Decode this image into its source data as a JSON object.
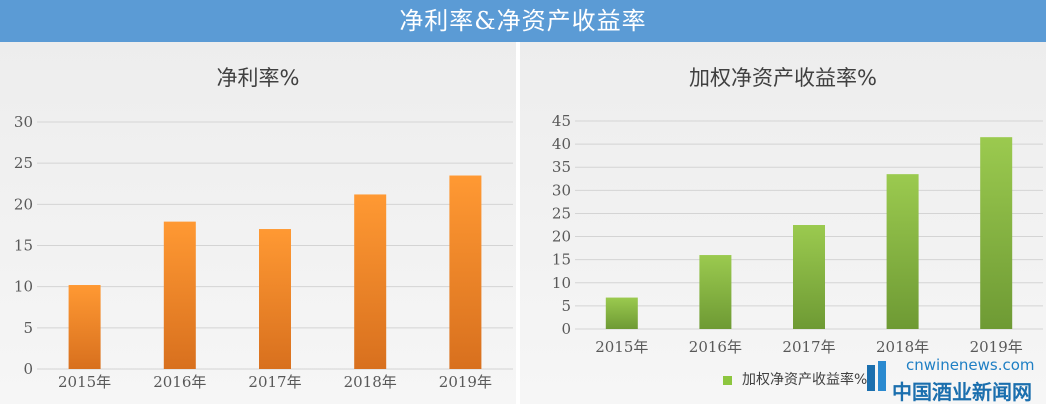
{
  "banner": {
    "title": "净利率&净资产收益率"
  },
  "chart_data": [
    {
      "type": "bar",
      "title": "净利率%",
      "categories": [
        "2015年",
        "2016年",
        "2017年",
        "2018年",
        "2019年"
      ],
      "values": [
        10.2,
        17.9,
        17.0,
        21.2,
        23.5
      ],
      "ylim": [
        0,
        30
      ],
      "yticks": [
        0,
        5,
        10,
        15,
        20,
        25,
        30
      ],
      "grid": true,
      "colors": {
        "bar_top": "#ff9933",
        "bar_bottom": "#d8701e"
      }
    },
    {
      "type": "bar",
      "title": "加权净资产收益率%",
      "categories": [
        "2015年",
        "2016年",
        "2017年",
        "2018年",
        "2019年"
      ],
      "series": [
        {
          "name": "加权净资产收益率%",
          "values": [
            6.8,
            16.0,
            22.5,
            33.5,
            41.5
          ]
        }
      ],
      "ylim": [
        0,
        45
      ],
      "yticks": [
        0,
        5,
        10,
        15,
        20,
        25,
        30,
        35,
        40,
        45
      ],
      "grid": true,
      "legend": "bottom",
      "colors": {
        "bar_top": "#9bca4f",
        "bar_bottom": "#6e9a34"
      }
    }
  ],
  "watermark": {
    "url": "cnwinenews.com",
    "name": "中国酒业新闻网"
  }
}
